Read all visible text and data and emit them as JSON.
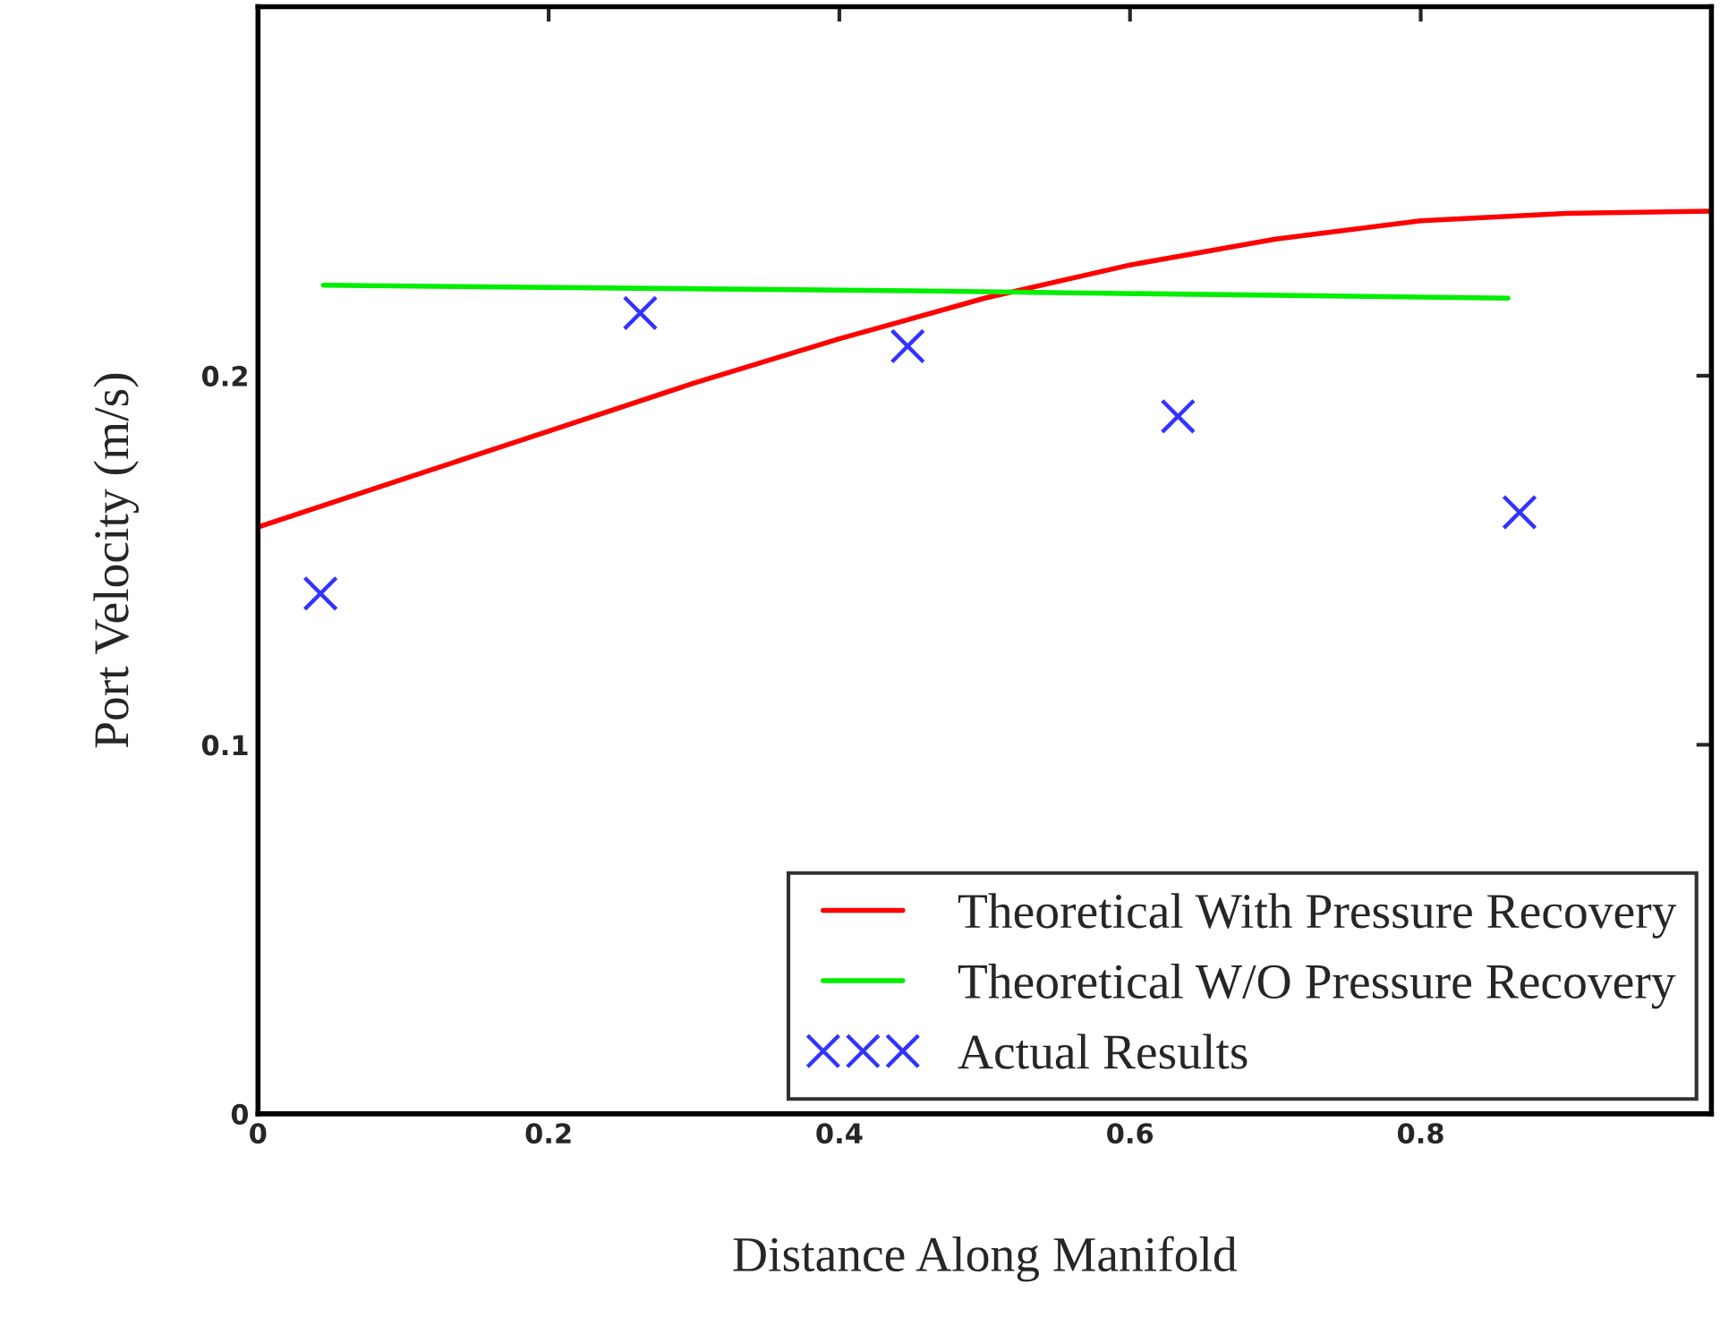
{
  "chart_data": {
    "type": "line",
    "xlabel": "Distance Along Manifold",
    "ylabel": "Port Velocity (m/s)",
    "xlim": [
      0,
      1
    ],
    "ylim": [
      0,
      0.3
    ],
    "xticks": [
      0,
      0.2,
      0.4,
      0.6,
      0.8
    ],
    "yticks": [
      0,
      0.1,
      0.2
    ],
    "grid": false,
    "legend": "bottom right",
    "series": [
      {
        "name": "Theoretical With Pressure Recovery",
        "color": "#ff0000",
        "marker": "none",
        "x": [
          0,
          0.1,
          0.2,
          0.3,
          0.4,
          0.5,
          0.6,
          0.7,
          0.8,
          0.9,
          1.0
        ],
        "values": [
          0.159,
          0.172,
          0.185,
          0.198,
          0.21,
          0.221,
          0.23,
          0.237,
          0.242,
          0.244,
          0.2446
        ]
      },
      {
        "name": "Theoretical W/O Pressure Recovery",
        "color": "#00ee00",
        "marker": "none",
        "x": [
          0.045,
          0.45,
          0.86
        ],
        "values": [
          0.2245,
          0.223,
          0.221
        ]
      },
      {
        "name": "Actual Results",
        "color": "#3333ff",
        "type": "scatter",
        "marker": "cross",
        "x": [
          0.043,
          0.263,
          0.447,
          0.633,
          0.868
        ],
        "values": [
          0.141,
          0.217,
          0.208,
          0.189,
          0.163
        ]
      }
    ]
  }
}
